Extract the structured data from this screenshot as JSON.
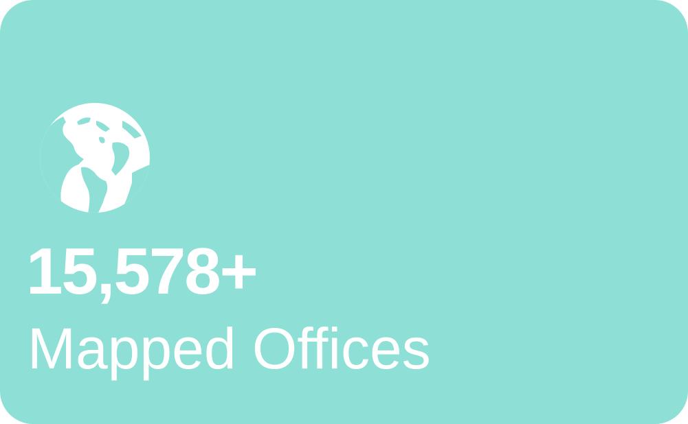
{
  "card": {
    "background_color": "#8ee0d6",
    "text_color": "#ffffff",
    "icon": "globe-americas-icon",
    "value": "15,578+",
    "label": "Mapped Offices"
  }
}
